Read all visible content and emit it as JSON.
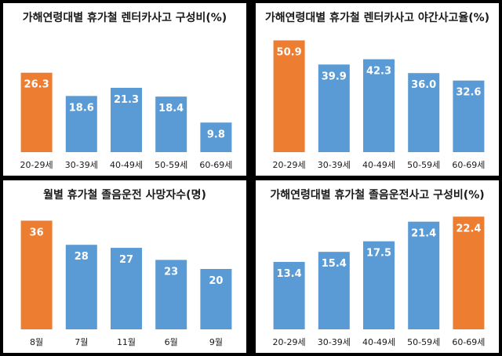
{
  "chart_data": [
    {
      "type": "bar",
      "title": "가해연령대별 휴가철 렌터카사고 구성비(%)",
      "categories": [
        "20-29세",
        "30-39세",
        "40-49세",
        "50-59세",
        "60-69세"
      ],
      "values": [
        26.3,
        18.6,
        21.3,
        18.4,
        9.8
      ],
      "labels": [
        "26.3",
        "18.6",
        "21.3",
        "18.4",
        "9.8"
      ],
      "highlight_index": 0,
      "ylim": [
        0,
        40
      ],
      "grid": false
    },
    {
      "type": "bar",
      "title": "가해연령대별 휴가철 렌터카사고 야간사고율(%)",
      "categories": [
        "20-29세",
        "30-39세",
        "40-49세",
        "50-59세",
        "60-69세"
      ],
      "values": [
        50.9,
        39.9,
        42.3,
        36.0,
        32.6
      ],
      "labels": [
        "50.9",
        "39.9",
        "42.3",
        "36.0",
        "32.6"
      ],
      "highlight_index": 0,
      "ylim": [
        0,
        55
      ],
      "grid": false
    },
    {
      "type": "bar",
      "title": "월별 휴가철 졸음운전 사망자수(명)",
      "categories": [
        "8월",
        "7월",
        "11월",
        "6월",
        "9월"
      ],
      "values": [
        36,
        28,
        27,
        23,
        20
      ],
      "labels": [
        "36",
        "28",
        "27",
        "23",
        "20"
      ],
      "highlight_index": 0,
      "ylim": [
        0,
        40
      ],
      "grid": false
    },
    {
      "type": "bar",
      "title": "가해연령대별 휴가철 졸음운전사고 구성비(%)",
      "categories": [
        "20-29세",
        "30-39세",
        "40-49세",
        "50-59세",
        "60-69세"
      ],
      "values": [
        13.4,
        15.4,
        17.5,
        21.4,
        22.4
      ],
      "labels": [
        "13.4",
        "15.4",
        "17.5",
        "21.4",
        "22.4"
      ],
      "highlight_index": 4,
      "ylim": [
        0,
        24
      ],
      "grid": false
    }
  ],
  "colors": {
    "highlight": "#ed7d31",
    "bar": "#5b9bd5",
    "bar_light": "#8ec0ee",
    "panel_bg": "#ffffff",
    "text": "#1a1a1a",
    "frame": "#000000"
  }
}
